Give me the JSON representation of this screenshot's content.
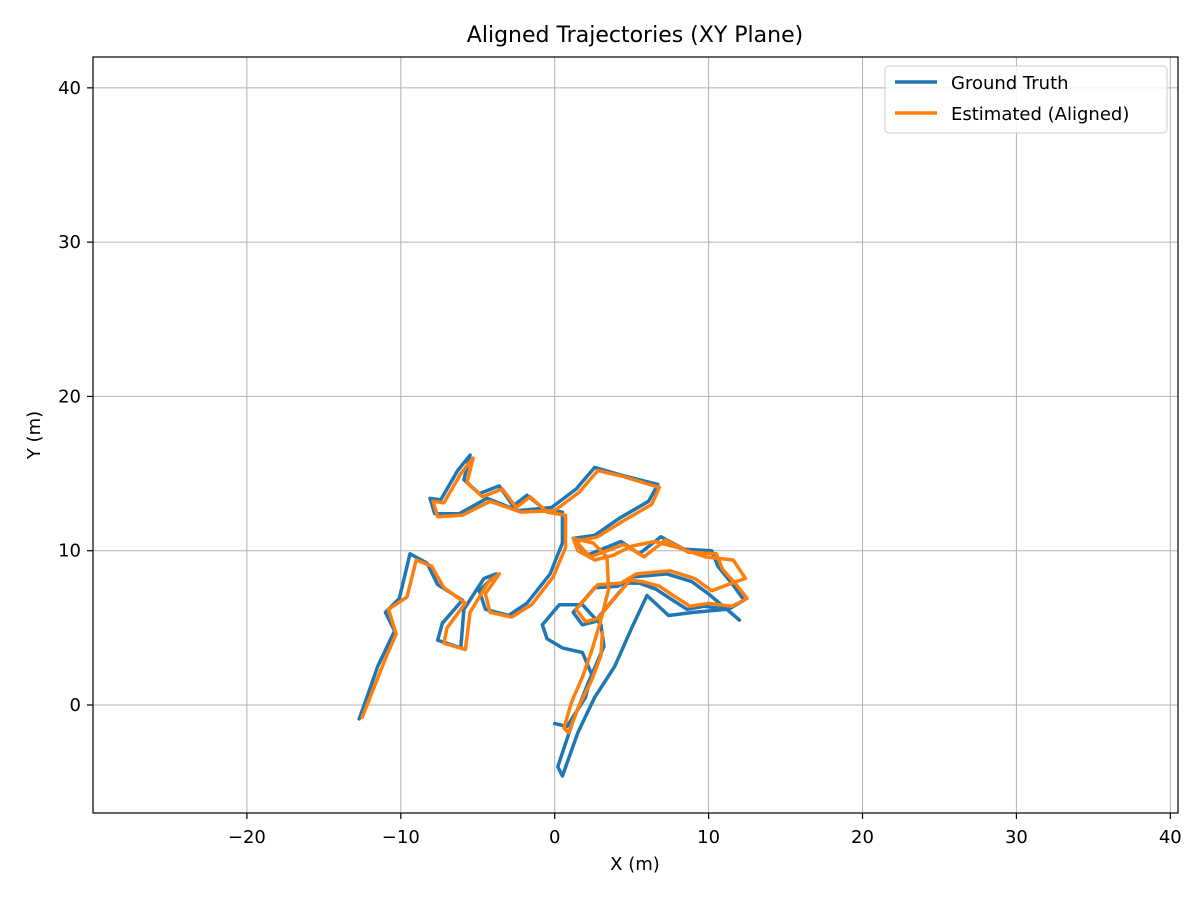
{
  "chart_data": {
    "type": "line",
    "title": "Aligned Trajectories (XY Plane)",
    "xlabel": "X (m)",
    "ylabel": "Y (m)",
    "xlim": [
      -30,
      40.5
    ],
    "ylim": [
      -7,
      42
    ],
    "xticks": [
      -20,
      -10,
      0,
      10,
      20,
      30,
      40
    ],
    "yticks": [
      0,
      10,
      20,
      30,
      40
    ],
    "xtick_labels": [
      "−20",
      "−10",
      "0",
      "10",
      "20",
      "30",
      "40"
    ],
    "ytick_labels": [
      "0",
      "10",
      "20",
      "30",
      "40"
    ],
    "grid": true,
    "legend_position": "top-right",
    "series": [
      {
        "name": "Ground Truth",
        "color": "#1f77b4",
        "points": [
          [
            -12.7,
            -0.9
          ],
          [
            -12.2,
            0.5
          ],
          [
            -11.5,
            2.5
          ],
          [
            -10.4,
            4.8
          ],
          [
            -11.0,
            6.0
          ],
          [
            -10.1,
            6.9
          ],
          [
            -9.4,
            9.8
          ],
          [
            -8.3,
            9.2
          ],
          [
            -7.6,
            7.8
          ],
          [
            -6.0,
            6.8
          ],
          [
            -7.3,
            5.3
          ],
          [
            -7.6,
            4.2
          ],
          [
            -6.1,
            3.7
          ],
          [
            -5.9,
            6.2
          ],
          [
            -4.6,
            8.2
          ],
          [
            -3.8,
            8.5
          ],
          [
            -4.9,
            7.4
          ],
          [
            -4.5,
            6.2
          ],
          [
            -3.0,
            5.8
          ],
          [
            -1.8,
            6.6
          ],
          [
            -0.3,
            8.5
          ],
          [
            0.5,
            10.5
          ],
          [
            0.5,
            12.5
          ],
          [
            -0.7,
            12.7
          ],
          [
            -1.8,
            13.6
          ],
          [
            -2.7,
            12.9
          ],
          [
            -3.6,
            14.2
          ],
          [
            -4.9,
            13.7
          ],
          [
            -5.9,
            14.6
          ],
          [
            -5.5,
            16.2
          ],
          [
            -6.3,
            15.2
          ],
          [
            -7.4,
            13.3
          ],
          [
            -8.1,
            13.4
          ],
          [
            -7.8,
            12.4
          ],
          [
            -6.2,
            12.4
          ],
          [
            -4.4,
            13.4
          ],
          [
            -2.4,
            12.6
          ],
          [
            -0.2,
            12.8
          ],
          [
            1.4,
            14.0
          ],
          [
            2.6,
            15.4
          ],
          [
            4.3,
            14.9
          ],
          [
            6.7,
            14.3
          ],
          [
            6.1,
            13.2
          ],
          [
            4.2,
            12.1
          ],
          [
            2.6,
            11.0
          ],
          [
            1.2,
            10.8
          ],
          [
            2.1,
            9.7
          ],
          [
            4.3,
            10.6
          ],
          [
            5.5,
            9.8
          ],
          [
            6.9,
            10.9
          ],
          [
            8.4,
            10.1
          ],
          [
            10.2,
            10.0
          ],
          [
            10.6,
            9.0
          ],
          [
            11.5,
            7.9
          ],
          [
            12.3,
            6.8
          ],
          [
            11.3,
            6.2
          ],
          [
            9.7,
            6.4
          ],
          [
            8.6,
            6.2
          ],
          [
            7.5,
            6.9
          ],
          [
            6.6,
            7.5
          ],
          [
            5.5,
            7.9
          ],
          [
            4.7,
            7.9
          ],
          [
            3.6,
            6.6
          ],
          [
            2.6,
            5.4
          ],
          [
            1.8,
            5.2
          ],
          [
            1.2,
            6.0
          ],
          [
            2.6,
            7.6
          ],
          [
            4.1,
            7.7
          ],
          [
            5.1,
            8.3
          ],
          [
            7.3,
            8.5
          ],
          [
            8.9,
            8.0
          ],
          [
            10.0,
            7.2
          ],
          [
            12.0,
            5.5
          ],
          [
            11.2,
            6.2
          ],
          [
            9.0,
            6.0
          ],
          [
            7.4,
            5.8
          ],
          [
            6.0,
            7.1
          ],
          [
            5.0,
            5.0
          ],
          [
            3.9,
            2.5
          ],
          [
            2.6,
            0.5
          ],
          [
            1.5,
            -1.8
          ],
          [
            0.5,
            -4.6
          ],
          [
            0.2,
            -4.0
          ],
          [
            1.2,
            -1.0
          ],
          [
            2.2,
            1.5
          ],
          [
            3.2,
            3.8
          ],
          [
            3.0,
            5.2
          ],
          [
            1.8,
            6.5
          ],
          [
            0.3,
            6.5
          ],
          [
            -0.8,
            5.2
          ],
          [
            -0.5,
            4.3
          ],
          [
            0.5,
            3.7
          ],
          [
            1.8,
            3.4
          ],
          [
            2.4,
            2.0
          ],
          [
            2.0,
            0.5
          ],
          [
            0.8,
            -1.4
          ],
          [
            0.0,
            -1.2
          ]
        ]
      },
      {
        "name": "Estimated (Aligned)",
        "color": "#ff7f0e",
        "points": [
          [
            -12.5,
            -0.8
          ],
          [
            -11.8,
            1.0
          ],
          [
            -11.0,
            3.0
          ],
          [
            -10.3,
            4.6
          ],
          [
            -10.8,
            6.2
          ],
          [
            -9.6,
            7.0
          ],
          [
            -9.0,
            9.4
          ],
          [
            -8.0,
            9.0
          ],
          [
            -7.2,
            7.6
          ],
          [
            -5.8,
            6.6
          ],
          [
            -7.0,
            5.0
          ],
          [
            -7.2,
            4.0
          ],
          [
            -5.8,
            3.6
          ],
          [
            -5.5,
            6.0
          ],
          [
            -4.3,
            8.0
          ],
          [
            -3.6,
            8.5
          ],
          [
            -4.5,
            7.2
          ],
          [
            -4.2,
            6.0
          ],
          [
            -2.8,
            5.7
          ],
          [
            -1.5,
            6.5
          ],
          [
            -0.1,
            8.3
          ],
          [
            0.7,
            10.2
          ],
          [
            0.7,
            12.3
          ],
          [
            -0.5,
            12.5
          ],
          [
            -1.6,
            13.5
          ],
          [
            -2.5,
            12.8
          ],
          [
            -3.4,
            14.0
          ],
          [
            -4.7,
            13.5
          ],
          [
            -5.7,
            14.4
          ],
          [
            -5.3,
            16.0
          ],
          [
            -6.1,
            15.0
          ],
          [
            -7.2,
            13.1
          ],
          [
            -7.9,
            13.2
          ],
          [
            -7.6,
            12.2
          ],
          [
            -6.0,
            12.3
          ],
          [
            -4.2,
            13.2
          ],
          [
            -2.2,
            12.5
          ],
          [
            0.0,
            12.6
          ],
          [
            1.6,
            13.8
          ],
          [
            2.8,
            15.2
          ],
          [
            4.5,
            14.8
          ],
          [
            6.8,
            14.1
          ],
          [
            6.3,
            13.0
          ],
          [
            4.4,
            11.9
          ],
          [
            2.8,
            10.9
          ],
          [
            1.4,
            10.6
          ],
          [
            2.3,
            9.6
          ],
          [
            4.5,
            10.4
          ],
          [
            5.8,
            9.6
          ],
          [
            7.2,
            10.7
          ],
          [
            8.7,
            9.9
          ],
          [
            10.5,
            9.8
          ],
          [
            10.9,
            8.8
          ],
          [
            11.8,
            7.8
          ],
          [
            12.5,
            6.9
          ],
          [
            11.5,
            6.4
          ],
          [
            10.0,
            6.6
          ],
          [
            8.8,
            6.4
          ],
          [
            7.7,
            7.1
          ],
          [
            6.8,
            7.7
          ],
          [
            5.7,
            8.0
          ],
          [
            4.9,
            8.1
          ],
          [
            3.8,
            6.8
          ],
          [
            2.8,
            5.6
          ],
          [
            2.0,
            5.4
          ],
          [
            1.4,
            6.2
          ],
          [
            2.8,
            7.8
          ],
          [
            4.3,
            7.9
          ],
          [
            5.3,
            8.5
          ],
          [
            7.5,
            8.7
          ],
          [
            9.1,
            8.2
          ],
          [
            10.2,
            7.4
          ],
          [
            11.5,
            7.9
          ],
          [
            12.4,
            8.2
          ],
          [
            11.6,
            9.4
          ],
          [
            9.8,
            9.6
          ],
          [
            8.0,
            10.2
          ],
          [
            6.5,
            10.6
          ],
          [
            5.0,
            10.3
          ],
          [
            3.8,
            9.7
          ],
          [
            2.6,
            9.4
          ],
          [
            1.5,
            10.0
          ],
          [
            1.2,
            10.8
          ],
          [
            2.5,
            10.5
          ],
          [
            3.4,
            9.6
          ],
          [
            3.5,
            7.5
          ],
          [
            3.0,
            5.5
          ],
          [
            2.4,
            3.5
          ],
          [
            1.8,
            1.8
          ],
          [
            1.1,
            0.2
          ],
          [
            0.6,
            -1.5
          ],
          [
            0.9,
            -1.8
          ],
          [
            1.6,
            0.0
          ],
          [
            2.4,
            1.6
          ],
          [
            3.0,
            3.2
          ],
          [
            3.1,
            4.7
          ]
        ]
      }
    ]
  }
}
